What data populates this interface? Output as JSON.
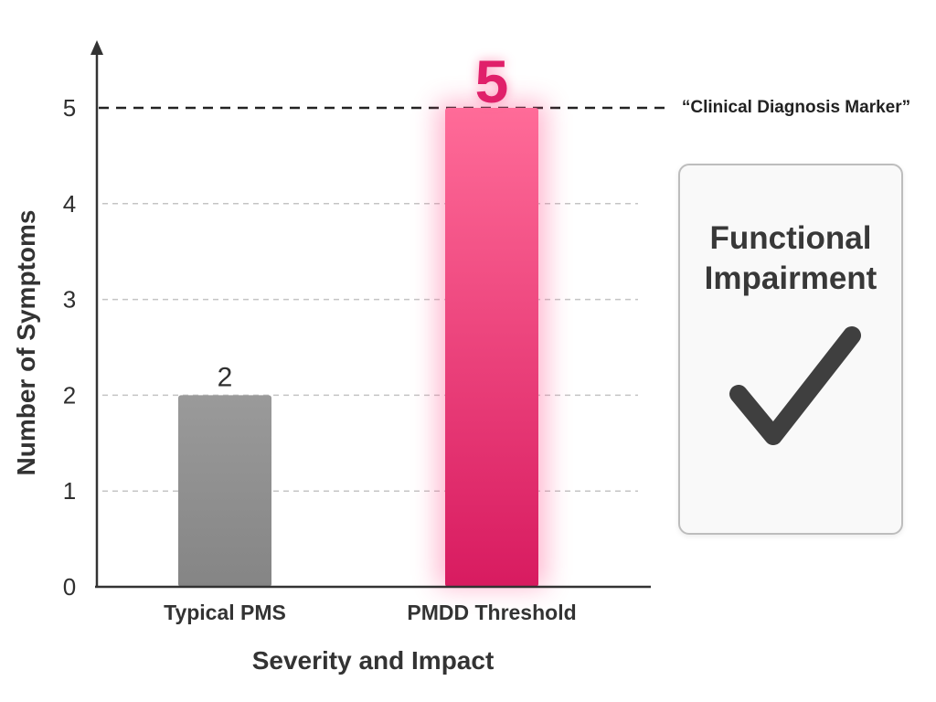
{
  "chart_data": {
    "type": "bar",
    "categories": [
      "Typical PMS",
      "PMDD Threshold"
    ],
    "values": [
      2,
      5
    ],
    "value_labels": [
      "2",
      "5"
    ],
    "bar_colors": [
      "#8a8a8a",
      "#e8306f"
    ],
    "highlight_color": "#e0206a",
    "xlabel": "Severity and Impact",
    "ylabel": "Number of Symptoms",
    "ylim": [
      0,
      5
    ],
    "yticks": [
      "0",
      "1",
      "2",
      "3",
      "4",
      "5"
    ],
    "grid": true,
    "reference_line": {
      "value": 5,
      "style": "dashed",
      "label": "“Clinical Diagnosis Marker”"
    }
  },
  "callout": {
    "title": "Functional Impairment",
    "icon": "checkmark-icon"
  }
}
